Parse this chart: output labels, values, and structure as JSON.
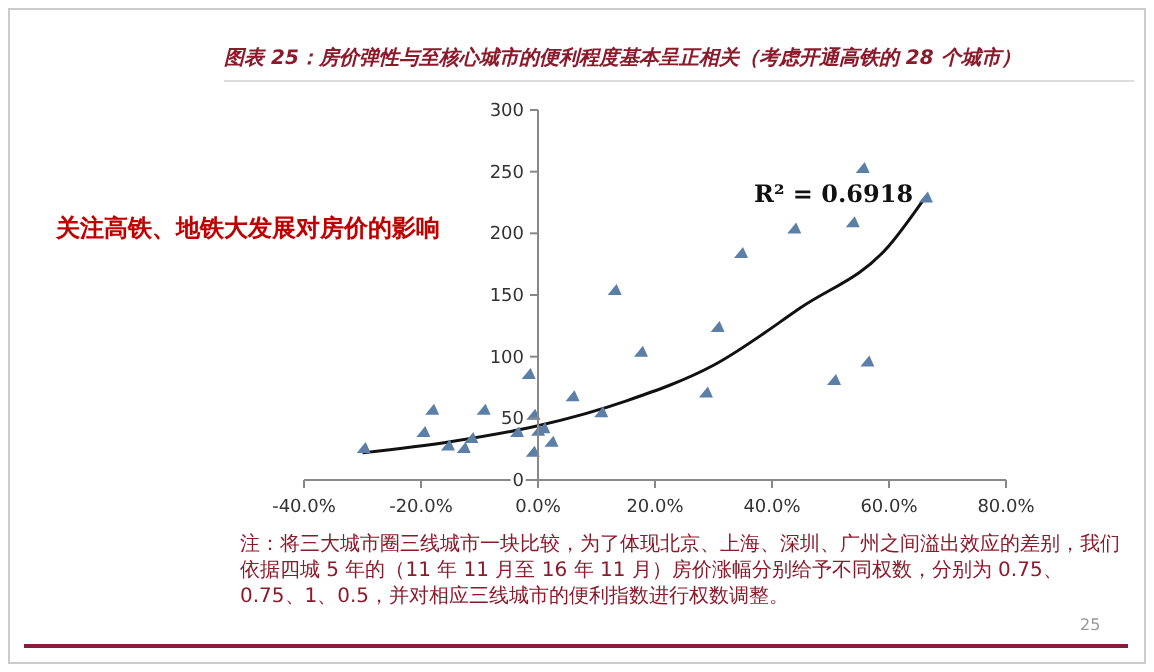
{
  "chart_data": {
    "type": "scatter",
    "title": "图表 25：房价弹性与至核心城市的便利程度基本呈正相关（考虑开通高铁的 28 个城市）",
    "annotations": [
      "关注高铁、地铁大发展对房价的影响",
      "R² = 0.6918",
      "注：将三大城市圈三线城市一块比较，为了体现北京、上海、深圳、广州之间溢出效应的差别，我们依据四城 5 年的（11 年 11 月至 16 年 11 月）房价涨幅分别给予不同权数，分别为 0.75、0.75、1、0.5，并对相应三线城市的便利指数进行权数调整。",
      "25"
    ],
    "xlim": [
      -40,
      80
    ],
    "xticks": [
      {
        "value": -40,
        "label": "-40.0%"
      },
      {
        "value": -20,
        "label": "-20.0%"
      },
      {
        "value": 0,
        "label": "0.0%"
      },
      {
        "value": 20,
        "label": "20.0%"
      },
      {
        "value": 40,
        "label": "40.0%"
      },
      {
        "value": 60,
        "label": "60.0%"
      },
      {
        "value": 80,
        "label": "80.0%"
      }
    ],
    "ylim": [
      0,
      300
    ],
    "yticks": [
      0,
      50,
      100,
      150,
      200,
      250,
      300
    ],
    "grid": false,
    "legend": false,
    "marker": "triangle",
    "series": [
      {
        "color": "#5b7fa6",
        "x": [
          -29.8,
          -19.6,
          -18.1,
          -15.4,
          -12.7,
          -11.4,
          -9.3,
          -3.6,
          -1.6,
          -0.8,
          -0.9,
          0,
          0.9,
          2.3,
          5.9,
          10.8,
          13.1,
          17.6,
          28.7,
          30.7,
          34.7,
          43.8,
          50.6,
          53.8,
          55.5,
          56.3,
          66.3
        ],
        "values": [
          26,
          39,
          57,
          28,
          26,
          34,
          57,
          39,
          86,
          53,
          23,
          40,
          42,
          31,
          68,
          55,
          154,
          104,
          71,
          124,
          184,
          204,
          81,
          209,
          253,
          96,
          229
        ]
      },
      {
        "type": "line",
        "color": "#111111",
        "marker": "none",
        "x": [
          -30,
          -15,
          0,
          15,
          30,
          45,
          60,
          66
        ],
        "values": [
          22,
          31,
          44,
          64,
          93,
          140,
          190,
          228
        ]
      }
    ]
  }
}
